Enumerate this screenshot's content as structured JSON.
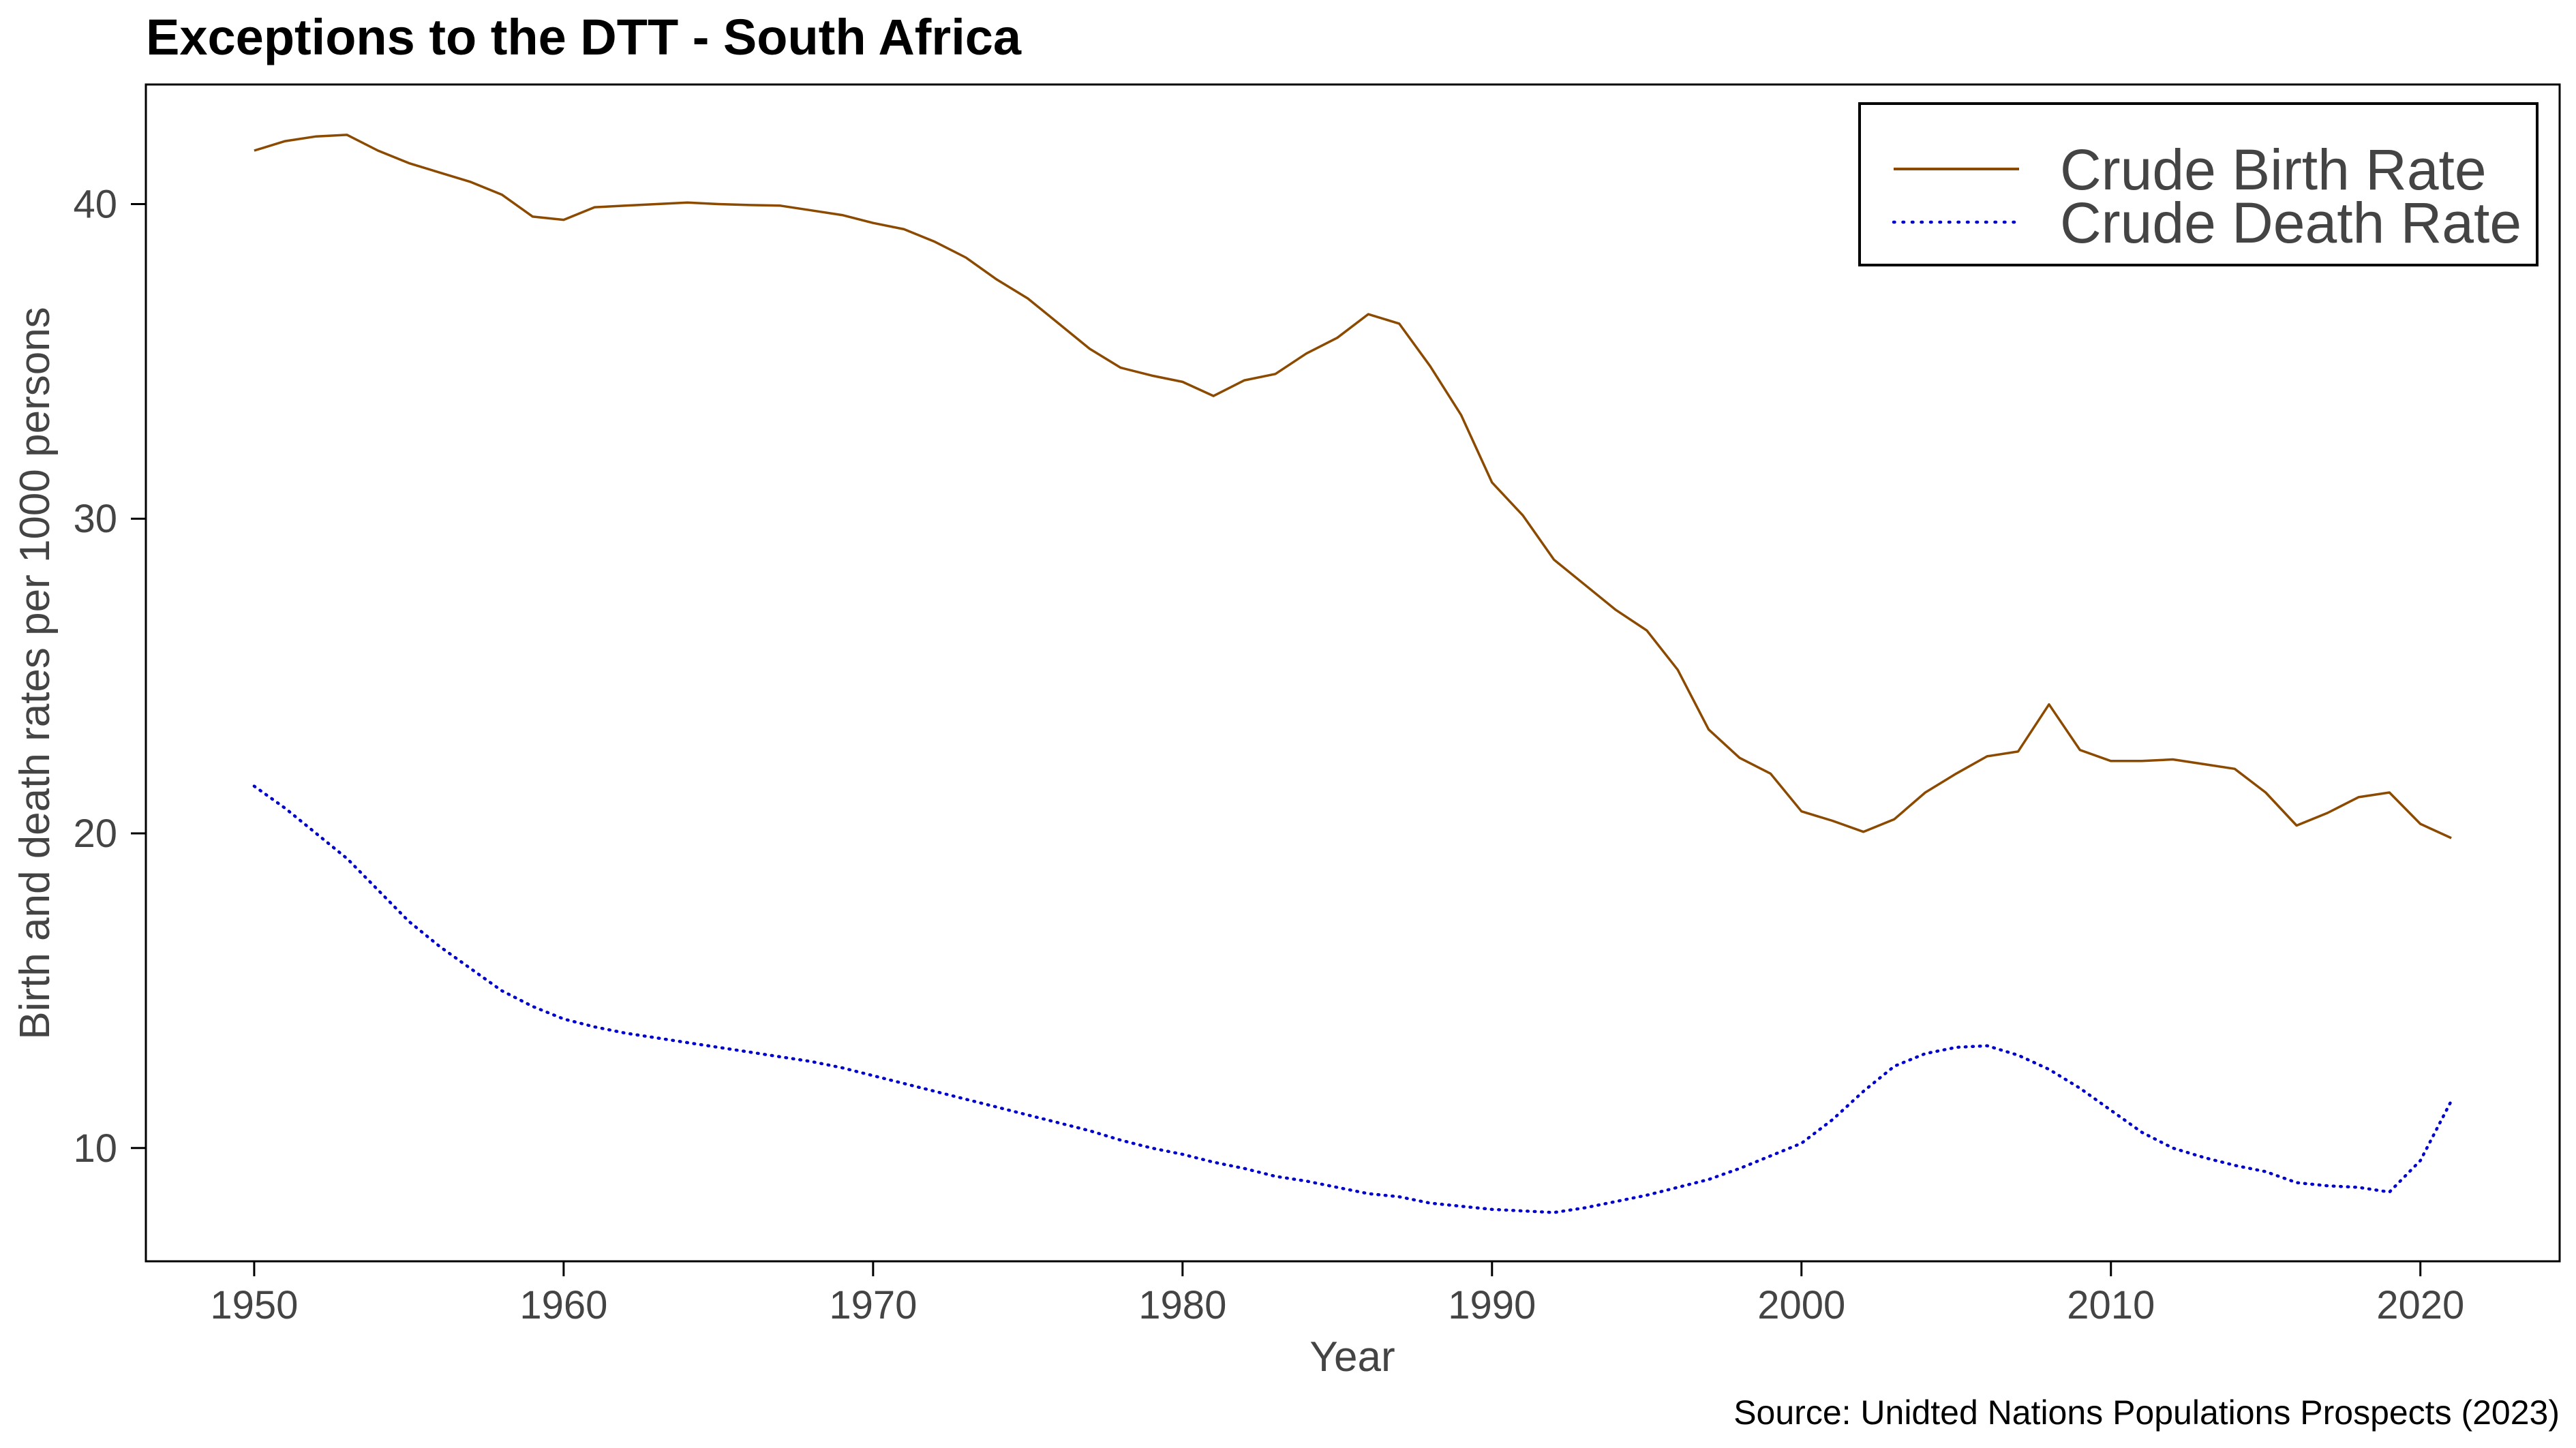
{
  "chart_data": {
    "type": "line",
    "title": "Exceptions to the DTT - South Africa",
    "xlabel": "Year",
    "ylabel": "Birth and death rates per 1000 persons",
    "source": "Source: Unidted Nations Populations Prospects (2023)",
    "xlim": [
      1946.5,
      2024.5
    ],
    "ylim": [
      6.4,
      43.8
    ],
    "xticks": [
      1950,
      1960,
      1970,
      1980,
      1990,
      2000,
      2010,
      2020
    ],
    "yticks": [
      10,
      20,
      30,
      40
    ],
    "grid": false,
    "legend_position": "top-right",
    "x": [
      1950,
      1951,
      1952,
      1953,
      1954,
      1955,
      1956,
      1957,
      1958,
      1959,
      1960,
      1961,
      1962,
      1963,
      1964,
      1965,
      1966,
      1967,
      1968,
      1969,
      1970,
      1971,
      1972,
      1973,
      1974,
      1975,
      1976,
      1977,
      1978,
      1979,
      1980,
      1981,
      1982,
      1983,
      1984,
      1985,
      1986,
      1987,
      1988,
      1989,
      1990,
      1991,
      1992,
      1993,
      1994,
      1995,
      1996,
      1997,
      1998,
      1999,
      2000,
      2001,
      2002,
      2003,
      2004,
      2005,
      2006,
      2007,
      2008,
      2009,
      2010,
      2011,
      2012,
      2013,
      2014,
      2015,
      2016,
      2017,
      2018,
      2019,
      2020,
      2021
    ],
    "series": [
      {
        "name": "Crude Birth Rate",
        "color": "#8B4A00",
        "style": "solid",
        "values": [
          41.7,
          42.0,
          42.15,
          42.2,
          41.7,
          41.3,
          41.0,
          40.7,
          40.3,
          39.6,
          39.5,
          39.9,
          39.95,
          40.0,
          40.05,
          40.0,
          39.97,
          39.95,
          39.8,
          39.65,
          39.4,
          39.2,
          38.8,
          38.3,
          37.6,
          37.0,
          36.2,
          35.4,
          34.8,
          34.55,
          34.35,
          33.9,
          34.4,
          34.6,
          35.25,
          35.75,
          36.5,
          36.2,
          34.85,
          33.3,
          31.15,
          30.1,
          28.7,
          27.9,
          27.1,
          26.45,
          25.2,
          23.3,
          22.4,
          21.9,
          20.7,
          20.4,
          20.05,
          20.45,
          21.3,
          21.9,
          22.45,
          22.6,
          24.1,
          22.65,
          22.3,
          22.3,
          22.35,
          22.2,
          22.05,
          21.3,
          20.25,
          20.65,
          21.15,
          21.3,
          20.3,
          19.85
        ]
      },
      {
        "name": "Crude Death Rate",
        "color": "#0000CD",
        "style": "dotted",
        "values": [
          21.5,
          20.8,
          20.0,
          19.2,
          18.2,
          17.2,
          16.4,
          15.7,
          15.0,
          14.5,
          14.1,
          13.85,
          13.65,
          13.5,
          13.35,
          13.2,
          13.05,
          12.9,
          12.75,
          12.55,
          12.3,
          12.05,
          11.8,
          11.55,
          11.3,
          11.05,
          10.8,
          10.55,
          10.25,
          10.0,
          9.8,
          9.55,
          9.35,
          9.1,
          8.95,
          8.75,
          8.55,
          8.45,
          8.25,
          8.15,
          8.05,
          8.0,
          7.95,
          8.1,
          8.3,
          8.5,
          8.75,
          9.0,
          9.35,
          9.75,
          10.15,
          10.9,
          11.8,
          12.6,
          13.0,
          13.2,
          13.25,
          12.95,
          12.5,
          11.9,
          11.2,
          10.5,
          10.0,
          9.7,
          9.45,
          9.25,
          8.9,
          8.8,
          8.75,
          8.6,
          9.6,
          11.5
        ]
      }
    ]
  }
}
